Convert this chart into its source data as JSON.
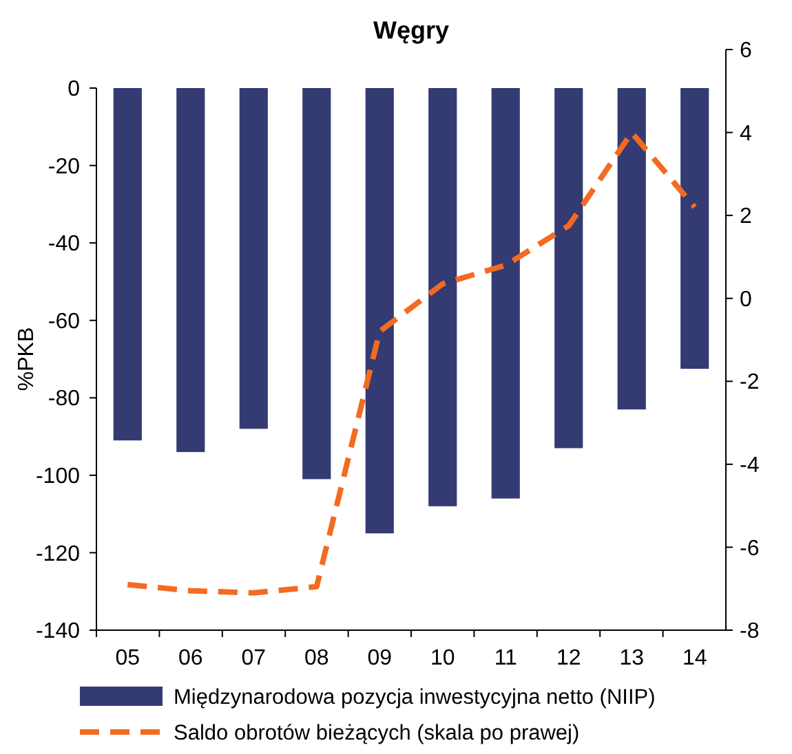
{
  "chart_data": {
    "type": "bar",
    "title": "Węgry",
    "ylabel": "%PKB",
    "categories": [
      "05",
      "06",
      "07",
      "08",
      "09",
      "10",
      "11",
      "12",
      "13",
      "14"
    ],
    "ylim": [
      -140,
      0
    ],
    "yticks": [
      -140,
      -120,
      -100,
      -80,
      -60,
      -40,
      -20,
      0
    ],
    "y2lim": [
      -8,
      6
    ],
    "y2ticks": [
      -8,
      -6,
      -4,
      -2,
      0,
      2,
      4,
      6
    ],
    "series": [
      {
        "name": "Międzynarodowa pozycja inwestycyjna netto (NIIP)",
        "color": "#343a72",
        "values": [
          -91,
          -94,
          -88,
          -101,
          -115,
          -108,
          -106,
          -93,
          -83,
          -72.5
        ]
      },
      {
        "name": "Saldo obrotów bieżących (skala po prawej)",
        "color": "#f26b21",
        "type": "line",
        "axis": "y2",
        "line_style": "dashed",
        "values": [
          -6.9,
          -7.05,
          -7.1,
          -6.95,
          -0.8,
          0.35,
          0.8,
          1.75,
          4,
          2.2
        ]
      }
    ],
    "legend": "bottom",
    "grid": false
  }
}
